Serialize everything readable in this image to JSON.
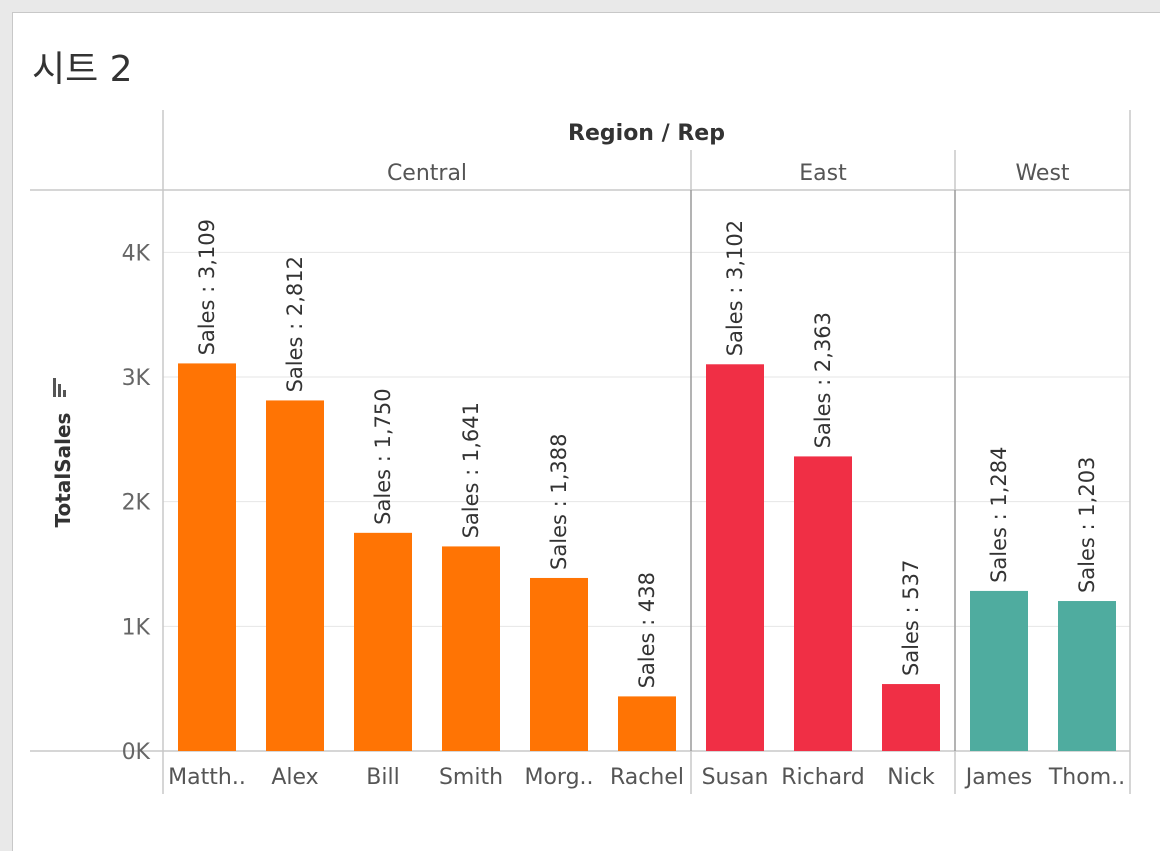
{
  "sheet_title": "시트 2",
  "colors": {
    "Central": "#ff7404",
    "East": "#f02f45",
    "West": "#4fac9f"
  },
  "chart_data": {
    "type": "bar",
    "header": "Region / Rep",
    "ylabel": "TotalSales",
    "ylim": [
      0,
      4500
    ],
    "yticks": [
      {
        "value": 0,
        "label": "0K"
      },
      {
        "value": 1000,
        "label": "1K"
      },
      {
        "value": 2000,
        "label": "2K"
      },
      {
        "value": 3000,
        "label": "3K"
      },
      {
        "value": 4000,
        "label": "4K"
      }
    ],
    "label_prefix": "Sales : ",
    "groups": [
      {
        "name": "Central",
        "bars": [
          {
            "rep": "Matth..",
            "value": 3109,
            "label": "3,109"
          },
          {
            "rep": "Alex",
            "value": 2812,
            "label": "2,812"
          },
          {
            "rep": "Bill",
            "value": 1750,
            "label": "1,750"
          },
          {
            "rep": "Smith",
            "value": 1641,
            "label": "1,641"
          },
          {
            "rep": "Morg..",
            "value": 1388,
            "label": "1,388"
          },
          {
            "rep": "Rachel",
            "value": 438,
            "label": "438"
          }
        ]
      },
      {
        "name": "East",
        "bars": [
          {
            "rep": "Susan",
            "value": 3102,
            "label": "3,102"
          },
          {
            "rep": "Richard",
            "value": 2363,
            "label": "2,363"
          },
          {
            "rep": "Nick",
            "value": 537,
            "label": "537"
          }
        ]
      },
      {
        "name": "West",
        "bars": [
          {
            "rep": "James",
            "value": 1284,
            "label": "1,284"
          },
          {
            "rep": "Thom..",
            "value": 1203,
            "label": "1,203"
          }
        ]
      }
    ]
  }
}
